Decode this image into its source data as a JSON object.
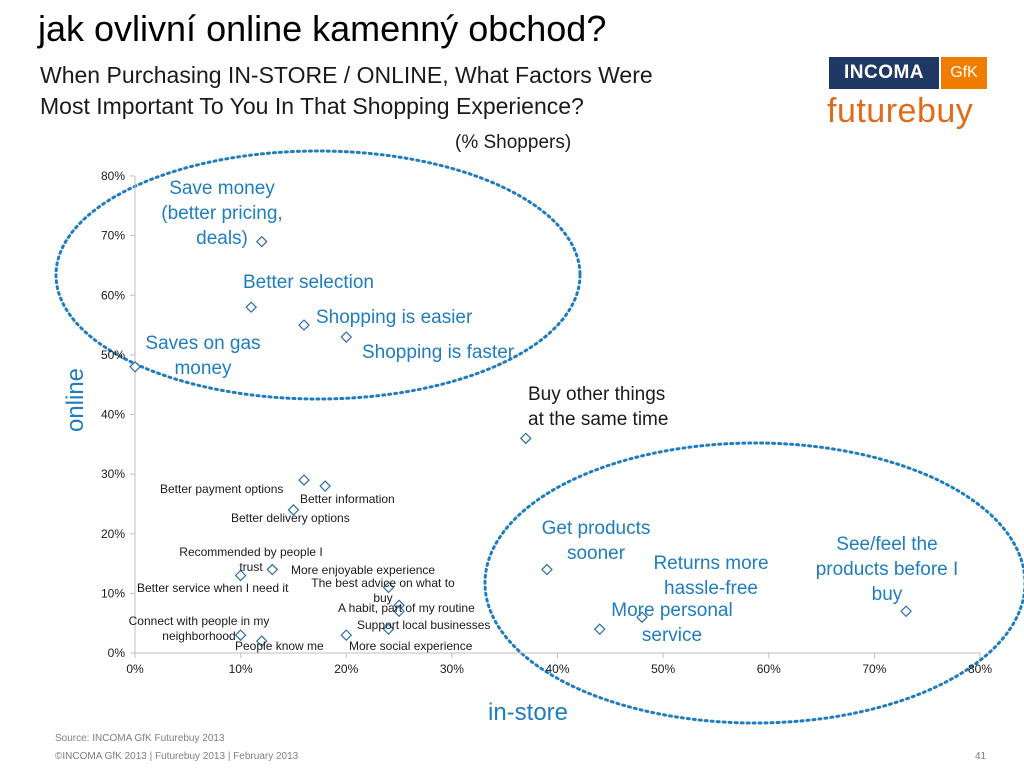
{
  "slide": {
    "title": "jak ovlivní online kamenný obchod?",
    "question_line1": "When Purchasing IN-STORE / ONLINE, What Factors Were",
    "question_line2": "Most Important To You In That Shopping Experience?",
    "subtitle": "(% Shoppers)",
    "logo_incoma": "INCOMA",
    "logo_gfk": "GfK",
    "logo_futurebuy": "futurebuy",
    "source": "Source: INCOMA GfK Futurebuy 2013",
    "copyright": "©INCOMA GfK 2013 | Futurebuy 2013 | February 2013",
    "page_number": "41"
  },
  "colors": {
    "accent": "#1f7dbf",
    "marker": "#2e6da4",
    "label_dark": "#1a1a1a",
    "axis": "#bfbfbf"
  },
  "chart_data": {
    "type": "scatter",
    "xlabel": "in-store",
    "ylabel": "online",
    "xlim": [
      0,
      80
    ],
    "ylim": [
      0,
      80
    ],
    "x_ticks": [
      "0%",
      "10%",
      "20%",
      "30%",
      "40%",
      "50%",
      "60%",
      "70%",
      "80%"
    ],
    "y_ticks": [
      "0%",
      "10%",
      "20%",
      "30%",
      "40%",
      "50%",
      "60%",
      "70%",
      "80%"
    ],
    "grid": false,
    "points": [
      {
        "label": "Save money (better pricing, deals)",
        "x": 12,
        "y": 69,
        "highlight": true
      },
      {
        "label": "Better selection",
        "x": 11,
        "y": 58,
        "highlight": true
      },
      {
        "label": "Shopping is easier",
        "x": 16,
        "y": 55,
        "highlight": true
      },
      {
        "label": "Shopping is faster",
        "x": 20,
        "y": 53,
        "highlight": true
      },
      {
        "label": "Saves on gas money",
        "x": 0,
        "y": 48,
        "highlight": true
      },
      {
        "label": "Buy other things at the same time",
        "x": 37,
        "y": 36,
        "highlight": false
      },
      {
        "label": "Better payment options",
        "x": 16,
        "y": 29,
        "highlight": false
      },
      {
        "label": "Better information",
        "x": 18,
        "y": 28,
        "highlight": false
      },
      {
        "label": "Better delivery options",
        "x": 15,
        "y": 24,
        "highlight": false
      },
      {
        "label": "Recommended by people I trust",
        "x": 13,
        "y": 14,
        "highlight": false
      },
      {
        "label": "More enjoyable experience",
        "x": 24,
        "y": 11,
        "highlight": false
      },
      {
        "label": "Better service when I need it",
        "x": 10,
        "y": 13,
        "highlight": false
      },
      {
        "label": "The best advice on what to buy",
        "x": 25,
        "y": 8,
        "highlight": false
      },
      {
        "label": "A habit, part of my routine",
        "x": 25,
        "y": 7,
        "highlight": false
      },
      {
        "label": "Connect with people in my neighborhood",
        "x": 10,
        "y": 3,
        "highlight": false
      },
      {
        "label": "Support local businesses",
        "x": 24,
        "y": 4,
        "highlight": false
      },
      {
        "label": "People know me",
        "x": 12,
        "y": 2,
        "highlight": false
      },
      {
        "label": "More social experience",
        "x": 20,
        "y": 3,
        "highlight": false
      },
      {
        "label": "Get products sooner",
        "x": 39,
        "y": 14,
        "highlight": true
      },
      {
        "label": "Returns more hassle-free",
        "x": 48,
        "y": 6,
        "highlight": true
      },
      {
        "label": "More personal service",
        "x": 44,
        "y": 4,
        "highlight": true
      },
      {
        "label": "See/feel the products before I buy",
        "x": 73,
        "y": 7,
        "highlight": true
      }
    ]
  }
}
